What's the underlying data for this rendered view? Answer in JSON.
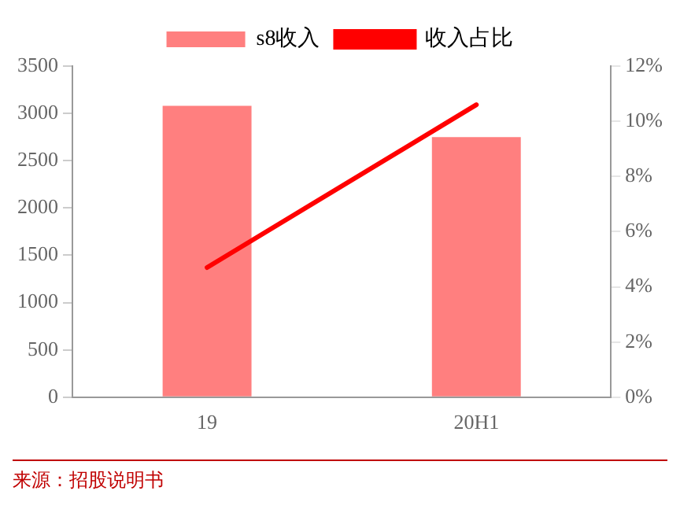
{
  "chart_data": {
    "type": "bar",
    "categories": [
      "19",
      "20H1"
    ],
    "series": [
      {
        "name": "s8收入",
        "color": "#ff7f7f",
        "values": [
          3080,
          2750
        ]
      },
      {
        "name": "收入占比",
        "type": "line",
        "axis": "y2",
        "color": "#ff0000",
        "values": [
          4.7,
          10.6
        ]
      }
    ],
    "ylim": [
      0,
      3500
    ],
    "yticks": [
      0,
      500,
      1000,
      1500,
      2000,
      2500,
      3000,
      3500
    ],
    "y2lim": [
      0,
      12
    ],
    "y2ticks": [
      {
        "value": 0,
        "label": "0%"
      },
      {
        "value": 2,
        "label": "2%"
      },
      {
        "value": 4,
        "label": "4%"
      },
      {
        "value": 6,
        "label": "6%"
      },
      {
        "value": 8,
        "label": "8%"
      },
      {
        "value": 10,
        "label": "10%"
      },
      {
        "value": 12,
        "label": "12%"
      }
    ],
    "grid": false,
    "legend": "top",
    "marker": "none",
    "line_style": "solid",
    "annotations": [
      "来源：招股说明书"
    ]
  }
}
